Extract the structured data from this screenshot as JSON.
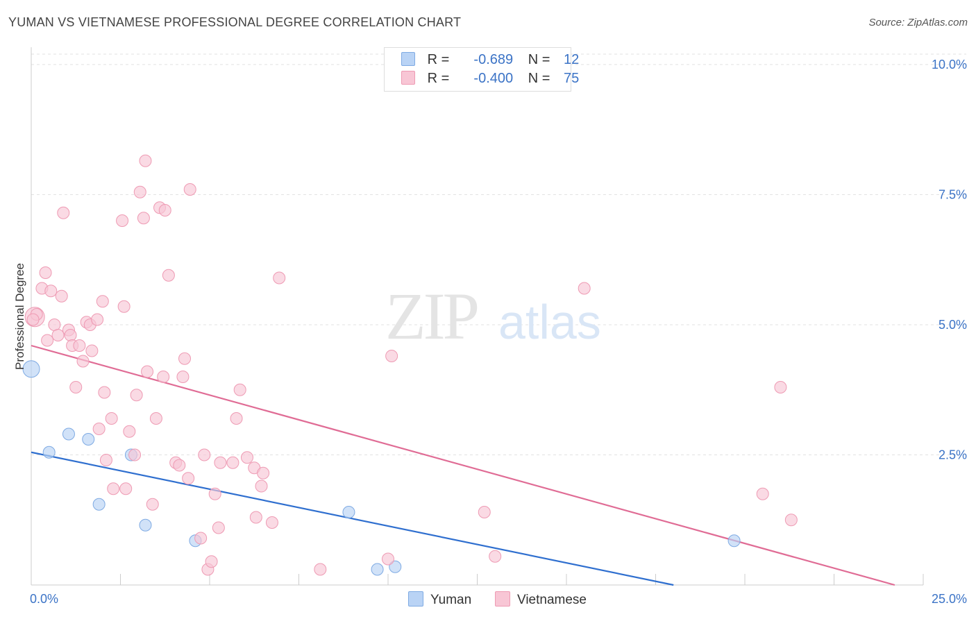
{
  "header": {
    "title": "YUMAN VS VIETNAMESE PROFESSIONAL DEGREE CORRELATION CHART",
    "source": "Source: ZipAtlas.com"
  },
  "legend": {
    "yuman": {
      "r_label": "R =",
      "r_value": "-0.689",
      "n_label": "N =",
      "n_value": "12"
    },
    "vietnamese": {
      "r_label": "R =",
      "r_value": "-0.400",
      "n_label": "N =",
      "n_value": "75"
    }
  },
  "watermark": {
    "zip": "ZIP",
    "atlas": "atlas"
  },
  "colors": {
    "yuman_fill": "#b9d3f5",
    "yuman_stroke": "#7eaae3",
    "yuman_line": "#2f6fcf",
    "viet_fill": "#f8c6d5",
    "viet_stroke": "#ee9ab3",
    "viet_line": "#e06c95",
    "tick_blue": "#3b73c6"
  },
  "chart_data": {
    "type": "scatter",
    "title": "YUMAN VS VIETNAMESE PROFESSIONAL DEGREE CORRELATION CHART",
    "xlabel": "",
    "ylabel": "Professional Degree",
    "xlim": [
      0,
      25
    ],
    "ylim": [
      0,
      10.2
    ],
    "x_ticks": [
      "0.0%",
      "25.0%"
    ],
    "y_ticks": [
      {
        "value": 2.5,
        "label": "2.5%"
      },
      {
        "value": 5.0,
        "label": "5.0%"
      },
      {
        "value": 7.5,
        "label": "7.5%"
      },
      {
        "value": 10.0,
        "label": "10.0%"
      }
    ],
    "series": [
      {
        "name": "Yuman",
        "points": [
          [
            0.0,
            4.15
          ],
          [
            0.5,
            2.55
          ],
          [
            1.05,
            2.9
          ],
          [
            1.6,
            2.8
          ],
          [
            1.9,
            1.55
          ],
          [
            2.8,
            2.5
          ],
          [
            3.2,
            1.15
          ],
          [
            4.6,
            0.85
          ],
          [
            8.9,
            1.4
          ],
          [
            9.7,
            0.3
          ],
          [
            10.2,
            0.35
          ],
          [
            19.7,
            0.85
          ]
        ],
        "trend": [
          [
            0.0,
            2.55
          ],
          [
            18.0,
            0.0
          ]
        ]
      },
      {
        "name": "Vietnamese",
        "points": [
          [
            0.1,
            5.15
          ],
          [
            0.15,
            5.2
          ],
          [
            0.3,
            5.7
          ],
          [
            0.4,
            6.0
          ],
          [
            0.45,
            4.7
          ],
          [
            0.55,
            5.65
          ],
          [
            0.65,
            5.0
          ],
          [
            0.75,
            4.8
          ],
          [
            0.85,
            5.55
          ],
          [
            0.9,
            7.15
          ],
          [
            1.05,
            4.9
          ],
          [
            1.1,
            4.8
          ],
          [
            1.15,
            4.6
          ],
          [
            1.25,
            3.8
          ],
          [
            1.35,
            4.6
          ],
          [
            1.45,
            4.3
          ],
          [
            1.55,
            5.05
          ],
          [
            1.65,
            5.0
          ],
          [
            1.7,
            4.5
          ],
          [
            1.85,
            5.1
          ],
          [
            1.9,
            3.0
          ],
          [
            2.0,
            5.45
          ],
          [
            2.05,
            3.7
          ],
          [
            2.1,
            2.4
          ],
          [
            2.25,
            3.2
          ],
          [
            2.3,
            1.85
          ],
          [
            2.55,
            7.0
          ],
          [
            2.6,
            5.35
          ],
          [
            2.65,
            1.85
          ],
          [
            2.75,
            2.95
          ],
          [
            2.9,
            2.5
          ],
          [
            2.95,
            3.65
          ],
          [
            3.05,
            7.55
          ],
          [
            3.15,
            7.05
          ],
          [
            3.2,
            8.15
          ],
          [
            3.25,
            4.1
          ],
          [
            3.4,
            1.55
          ],
          [
            3.5,
            3.2
          ],
          [
            3.6,
            7.25
          ],
          [
            3.7,
            4.0
          ],
          [
            3.75,
            7.2
          ],
          [
            3.85,
            5.95
          ],
          [
            4.05,
            2.35
          ],
          [
            4.15,
            2.3
          ],
          [
            4.25,
            4.0
          ],
          [
            4.3,
            4.35
          ],
          [
            4.4,
            2.05
          ],
          [
            4.45,
            7.6
          ],
          [
            4.75,
            0.9
          ],
          [
            4.85,
            2.5
          ],
          [
            4.95,
            0.3
          ],
          [
            5.05,
            0.45
          ],
          [
            5.15,
            1.75
          ],
          [
            5.25,
            1.1
          ],
          [
            5.3,
            2.35
          ],
          [
            5.65,
            2.35
          ],
          [
            5.75,
            3.2
          ],
          [
            5.85,
            3.75
          ],
          [
            6.05,
            2.45
          ],
          [
            6.25,
            2.25
          ],
          [
            6.3,
            1.3
          ],
          [
            6.45,
            1.9
          ],
          [
            6.5,
            2.15
          ],
          [
            6.75,
            1.2
          ],
          [
            6.95,
            5.9
          ],
          [
            8.1,
            0.3
          ],
          [
            10.0,
            0.5
          ],
          [
            10.1,
            4.4
          ],
          [
            12.7,
            1.4
          ],
          [
            13.0,
            0.55
          ],
          [
            15.5,
            5.7
          ],
          [
            20.5,
            1.75
          ],
          [
            21.3,
            1.25
          ],
          [
            21.0,
            3.8
          ],
          [
            0.05,
            5.1
          ]
        ],
        "trend": [
          [
            0.0,
            4.6
          ],
          [
            24.2,
            0.0
          ]
        ]
      }
    ]
  },
  "bottom_legend": {
    "yuman": "Yuman",
    "vietnamese": "Vietnamese"
  }
}
